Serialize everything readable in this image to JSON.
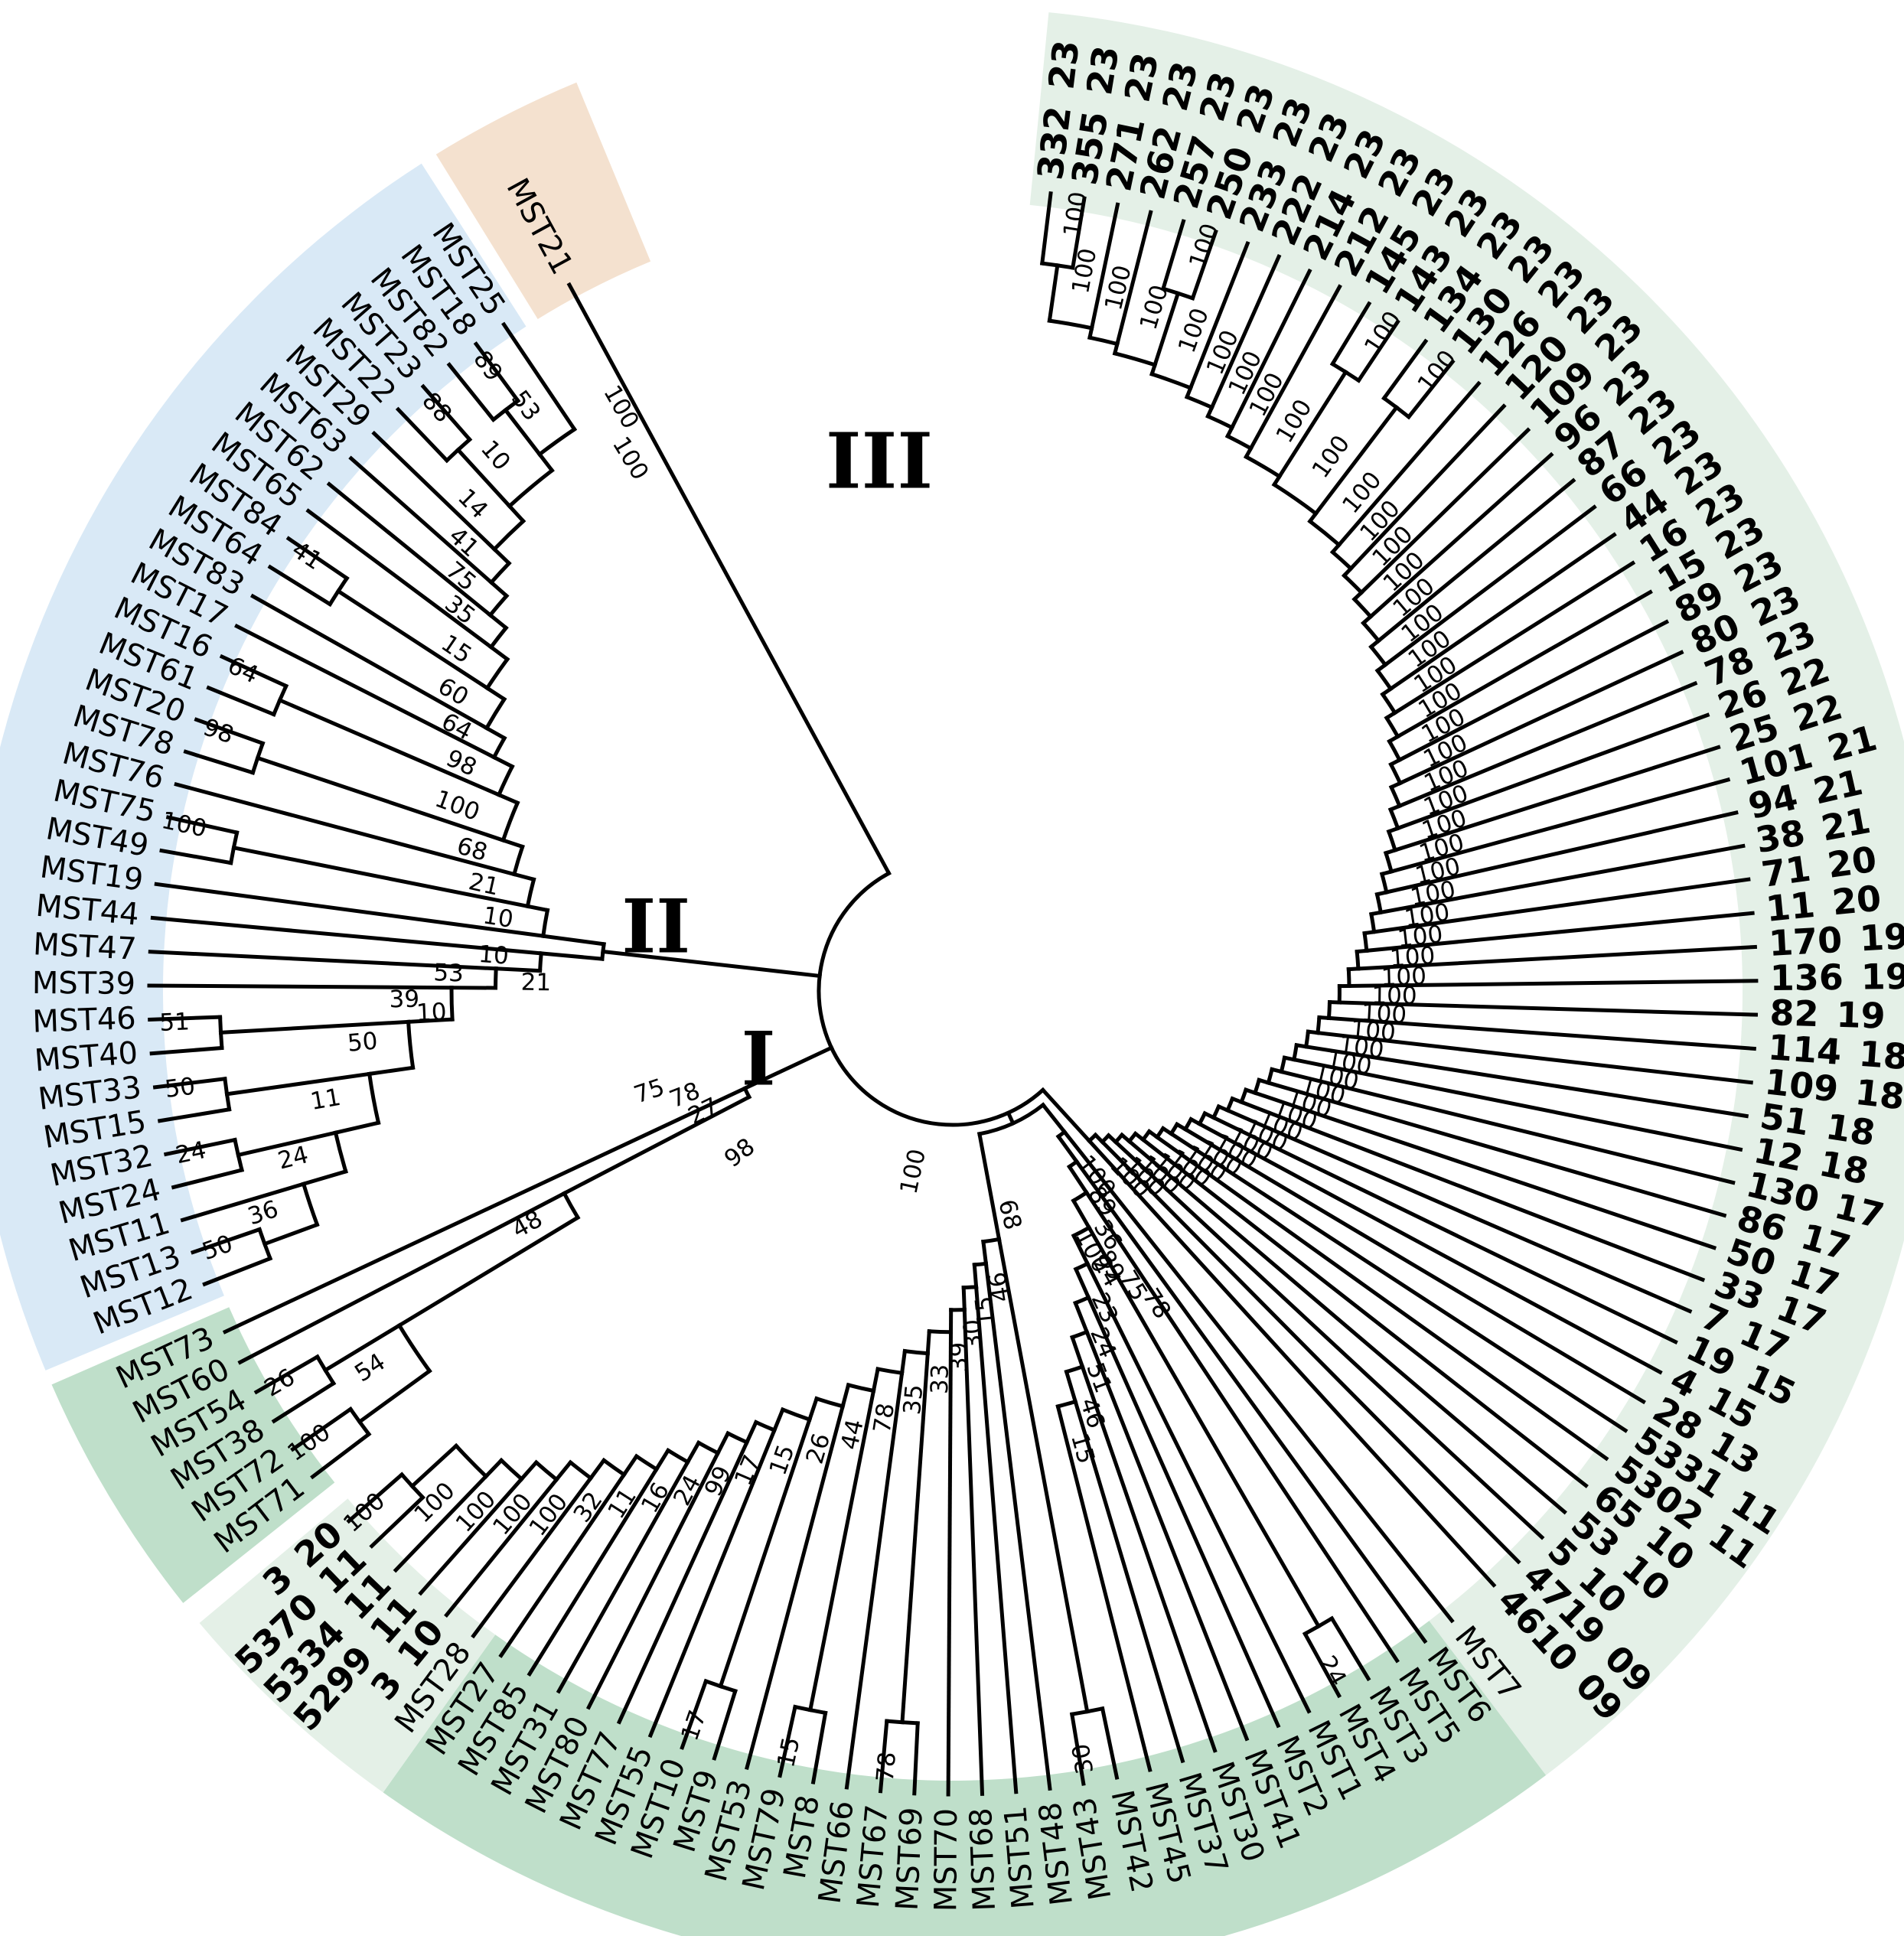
{
  "figure": {
    "description": "Circular phylogenetic tree (cladogram) of MST isolates with bootstrap support values and three labeled clades",
    "clade_numerals": [
      {
        "text": "I",
        "angle": 249,
        "r": 272,
        "size": 96
      },
      {
        "text": "II",
        "angle": 281,
        "r": 395,
        "size": 96
      },
      {
        "text": "III",
        "angle": 352,
        "r": 690,
        "size": 100
      }
    ]
  },
  "colors": {
    "pale_green": "#e4f0e7",
    "medium_green": "#bfdfca",
    "blue": "#d9e9f6",
    "tan": "#f4e1cf",
    "branch": "#000000"
  },
  "chart_data": {
    "type": "circular-dendrogram",
    "layout_hints": {
      "center": [
        1245,
        1295
      ],
      "tip_r": 1050,
      "label_r": 1068,
      "pair_r": 958,
      "root_r": 175,
      "step_deg": 2.42,
      "wedge_inner_r": 1032,
      "wedge_outer_r": 1285
    },
    "wedges": [
      {
        "color_key": "pale_green",
        "from": 5.6,
        "to": 142.9
      },
      {
        "color_key": "medium_green",
        "from": 142.9,
        "to": 215.4
      },
      {
        "color_key": "pale_green",
        "from": 215.4,
        "to": 230.0
      },
      {
        "color_key": "medium_green",
        "from": 231.5,
        "to": 246.4
      },
      {
        "color_key": "blue",
        "from": 247.3,
        "to": 327.3
      },
      {
        "color_key": "tan",
        "from": 328.3,
        "to": 337.5
      }
    ],
    "clusters": [
      {
        "id": "III",
        "kind": "ladder",
        "start_angle": 7.0,
        "leaves": [
          "332 23",
          "355 23",
          "271 23",
          "262 23",
          "257 23",
          "250 23",
          "233 23",
          "222 23",
          "214 23",
          "212 23",
          "145 23",
          "143 23",
          "134 23",
          "130 23",
          "126 23",
          "120 23",
          "109 23",
          "96 23",
          "87 23",
          "66 23",
          "44 23",
          "16 23",
          "15 23",
          "89 23",
          "80 23",
          "78 23",
          "26 22",
          "25 22",
          "101 21",
          "94 21",
          "38 21",
          "71 20",
          "11 20",
          "170 19",
          "136 19",
          "82 19",
          "114 18",
          "109 18",
          "51 18",
          "12 18",
          "130 17",
          "86 17",
          "50 17",
          "33 17",
          "7 17",
          "19 15",
          "4 15",
          "28 13",
          "5331 11",
          "5302 11",
          "65 10",
          "53 10",
          "5 10",
          "4719 09",
          "4610 09"
        ],
        "bold_all": true,
        "pairs": [
          [
            0,
            1
          ],
          [
            4,
            5
          ],
          [
            10,
            11
          ],
          [
            12,
            13
          ]
        ],
        "deep": "last",
        "r_shallow": 885,
        "r_deep": 265,
        "boot_all": "100",
        "pair_boot_all": "100"
      },
      {
        "id": "I",
        "kind": "vee",
        "start_angle": 141.6,
        "join_r": 190,
        "leaves": [
          "MST7",
          "MST6",
          "MST5",
          "MST3",
          "MST4",
          "MST1",
          "MST2",
          "MST41",
          "MST30",
          "MST37",
          "MST45",
          "MST42",
          "MST43",
          "MST48",
          "MST51",
          "MST68",
          "MST70",
          "MST69",
          "MST67",
          "MST66",
          "MST8",
          "MST79",
          "MST53",
          "MST9",
          "MST10",
          "MST55",
          "MST77",
          "MST80",
          "MST31",
          "MST85",
          "MST27",
          "MST28",
          "3 10",
          "5299 11",
          "5334 11",
          "5370 11",
          "3 20"
        ],
        "bold_indices": [
          32,
          33,
          34,
          35,
          36
        ],
        "arms": [
          {
            "from": 0,
            "to": 10,
            "deep": "first",
            "r_shallow": 560,
            "r_deep": 235,
            "pairs": [
              [
                3,
                4
              ]
            ],
            "pair_boots": [
              "24"
            ],
            "boots": [
              "15",
              "46",
              "51",
              "24",
              "23",
              "24",
              "36",
              "89",
              "100"
            ]
          },
          {
            "from": 11,
            "to": 36,
            "deep": "first",
            "r_shallow": 880,
            "r_deep": 330,
            "pairs": [
              [
                11,
                12
              ],
              [
                17,
                18
              ],
              [
                20,
                21
              ],
              [
                23,
                24
              ],
              [
                35,
                36
              ]
            ],
            "pair_boots": [
              "30",
              "78",
              "15",
              "17",
              "100"
            ],
            "boots": [
              "100",
              "100",
              "100",
              "100",
              "32",
              "11",
              "16",
              "24",
              "99",
              "17",
              "15",
              "26",
              "44",
              "78",
              "35",
              "33",
              "39",
              "30",
              "15",
              "46"
            ]
          }
        ]
      },
      {
        "id": "G",
        "kind": "ladder",
        "start_angle": 232.8,
        "leaves": [
          "MST71",
          "MST72",
          "MST38",
          "MST54",
          "MST60",
          "MST73"
        ],
        "pairs": [
          [
            0,
            1
          ],
          [
            2,
            3
          ]
        ],
        "pair_boots": [
          "100",
          "26"
        ],
        "deep": "last",
        "r_shallow": 845,
        "r_deep": 300,
        "boots": [
          "54",
          "48",
          "27"
        ]
      },
      {
        "id": "II",
        "kind": "vee",
        "start_angle": 248.6,
        "join_r": 460,
        "leaves": [
          "MST12",
          "MST13",
          "MST11",
          "MST24",
          "MST32",
          "MST15",
          "MST33",
          "MST40",
          "MST46",
          "MST39",
          "MST47",
          "MST44",
          "MST19",
          "MST49",
          "MST75",
          "MST76",
          "MST78",
          "MST20",
          "MST61",
          "MST16",
          "MST17",
          "MST83",
          "MST64",
          "MST84",
          "MST65",
          "MST62",
          "MST63",
          "MST29",
          "MST22",
          "MST23",
          "MST82",
          "MST18",
          "MST25"
        ],
        "arms": [
          {
            "from": 0,
            "to": 11,
            "deep": "last",
            "r_shallow": 885,
            "r_deep": 540,
            "pairs": [
              [
                0,
                1
              ],
              [
                3,
                4
              ],
              [
                5,
                6
              ],
              [
                7,
                8
              ]
            ],
            "pair_boots": [
              "50",
              "24",
              "50",
              "51"
            ],
            "boots": [
              "36",
              "24",
              "11",
              "50",
              "39",
              "53",
              "10"
            ]
          },
          {
            "from": 12,
            "to": 32,
            "deep": "first",
            "r_shallow": 885,
            "r_deep": 540,
            "pairs": [
              [
                13,
                14
              ],
              [
                16,
                17
              ],
              [
                18,
                19
              ],
              [
                22,
                23
              ],
              [
                28,
                29
              ],
              [
                30,
                31
              ]
            ],
            "pair_boots": [
              "100",
              "98",
              "64",
              "41",
              "88",
              "89"
            ],
            "boots": [
              "53",
              "10",
              "14",
              "41",
              "75",
              "35",
              "15",
              "60",
              "64",
              "98",
              "100",
              "68",
              "21",
              "10"
            ]
          }
        ]
      }
    ],
    "single_leaf": {
      "label": "MST21",
      "angle": 331.5
    },
    "extra_bootstrap_labels": [
      {
        "text": "100",
        "angle": 192,
        "r": 212
      },
      {
        "text": "68",
        "angle": 166,
        "r": 282
      },
      {
        "text": "100",
        "angle": 152,
        "r": 356
      },
      {
        "text": "89",
        "angle": 150.3,
        "r": 394
      },
      {
        "text": "75",
        "angle": 148.7,
        "r": 432
      },
      {
        "text": "78",
        "angle": 147.1,
        "r": 468
      },
      {
        "text": "98",
        "angle": 232.5,
        "r": 330
      },
      {
        "text": "78",
        "angle": 248.5,
        "r": 356
      },
      {
        "text": "75",
        "angle": 251.5,
        "r": 398
      },
      {
        "text": "21",
        "angle": 271,
        "r": 525
      },
      {
        "text": "10",
        "angle": 267.5,
        "r": 662
      },
      {
        "text": "100",
        "angle": 330.3,
        "r": 848
      },
      {
        "text": "100",
        "angle": 328.7,
        "r": 784
      }
    ]
  }
}
